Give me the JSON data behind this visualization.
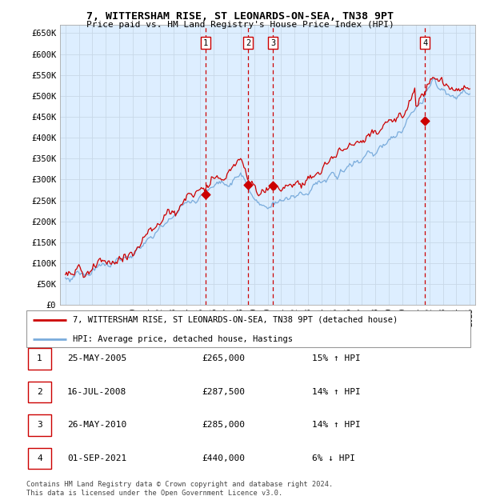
{
  "title_line1": "7, WITTERSHAM RISE, ST LEONARDS-ON-SEA, TN38 9PT",
  "title_line2": "Price paid vs. HM Land Registry's House Price Index (HPI)",
  "ylabel_ticks": [
    "£0",
    "£50K",
    "£100K",
    "£150K",
    "£200K",
    "£250K",
    "£300K",
    "£350K",
    "£400K",
    "£450K",
    "£500K",
    "£550K",
    "£600K",
    "£650K"
  ],
  "ytick_values": [
    0,
    50000,
    100000,
    150000,
    200000,
    250000,
    300000,
    350000,
    400000,
    450000,
    500000,
    550000,
    600000,
    650000
  ],
  "ymax": 670000,
  "ymin": 0,
  "xmin": 1994.6,
  "xmax": 2025.4,
  "sale_dates": [
    2005.39,
    2008.54,
    2010.39,
    2021.67
  ],
  "sale_prices": [
    265000,
    287500,
    285000,
    440000
  ],
  "sale_labels": [
    "1",
    "2",
    "3",
    "4"
  ],
  "legend_house": "7, WITTERSHAM RISE, ST LEONARDS-ON-SEA, TN38 9PT (detached house)",
  "legend_hpi": "HPI: Average price, detached house, Hastings",
  "table_data": [
    [
      "1",
      "25-MAY-2005",
      "£265,000",
      "15% ↑ HPI"
    ],
    [
      "2",
      "16-JUL-2008",
      "£287,500",
      "14% ↑ HPI"
    ],
    [
      "3",
      "26-MAY-2010",
      "£285,000",
      "14% ↑ HPI"
    ],
    [
      "4",
      "01-SEP-2021",
      "£440,000",
      "6% ↓ HPI"
    ]
  ],
  "footnote_line1": "Contains HM Land Registry data © Crown copyright and database right 2024.",
  "footnote_line2": "This data is licensed under the Open Government Licence v3.0.",
  "color_house": "#cc0000",
  "color_hpi": "#7aacdc",
  "color_grid_major": "#c8d8e8",
  "color_grid_minor": "#dce8f0",
  "color_bg": "#ddeeff",
  "color_vline": "#cc0000",
  "box_color": "#cc0000"
}
